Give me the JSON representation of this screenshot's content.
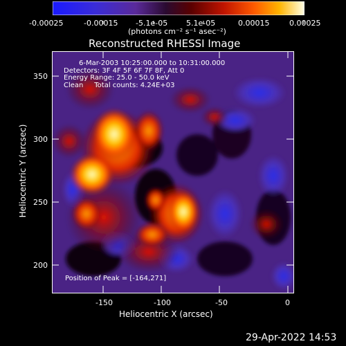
{
  "colorbar": {
    "ticks": [
      "-0.00025",
      "-0.00015",
      "-5.1e-05",
      "5.1e-05",
      "0.00015",
      "0.00025"
    ],
    "units": "(photons cm⁻² s⁻¹ asec⁻²)"
  },
  "plot": {
    "title": "Reconstructed RHESSI Image",
    "x_label": "Heliocentric X (arcsec)",
    "y_label": "Heliocentric Y (arcsec)",
    "x_ticks": [
      "-150",
      "-100",
      "-50",
      "0"
    ],
    "y_ticks": [
      "350",
      "300",
      "250",
      "200"
    ],
    "overlay": {
      "line1": "6-Mar-2003 10:25:00.000 to 10:31:00.000",
      "line2": "Detectors: 3F 4F 5F 6F 7F 8F, Att 0",
      "line3": "Energy Range: 25.0 - 50.0 keV",
      "line4": "Clean     Total counts: 4.24E+03",
      "peak": "Position of Peak = [-164,271]"
    }
  },
  "footer": {
    "timestamp": "29-Apr-2022 14:53"
  },
  "colors": {
    "background": "#000000",
    "accent_blue": "#2a2ee8",
    "accent_purple": "#5b238f",
    "hot_red": "#e01400",
    "hot_yellow": "#ffd84a"
  }
}
